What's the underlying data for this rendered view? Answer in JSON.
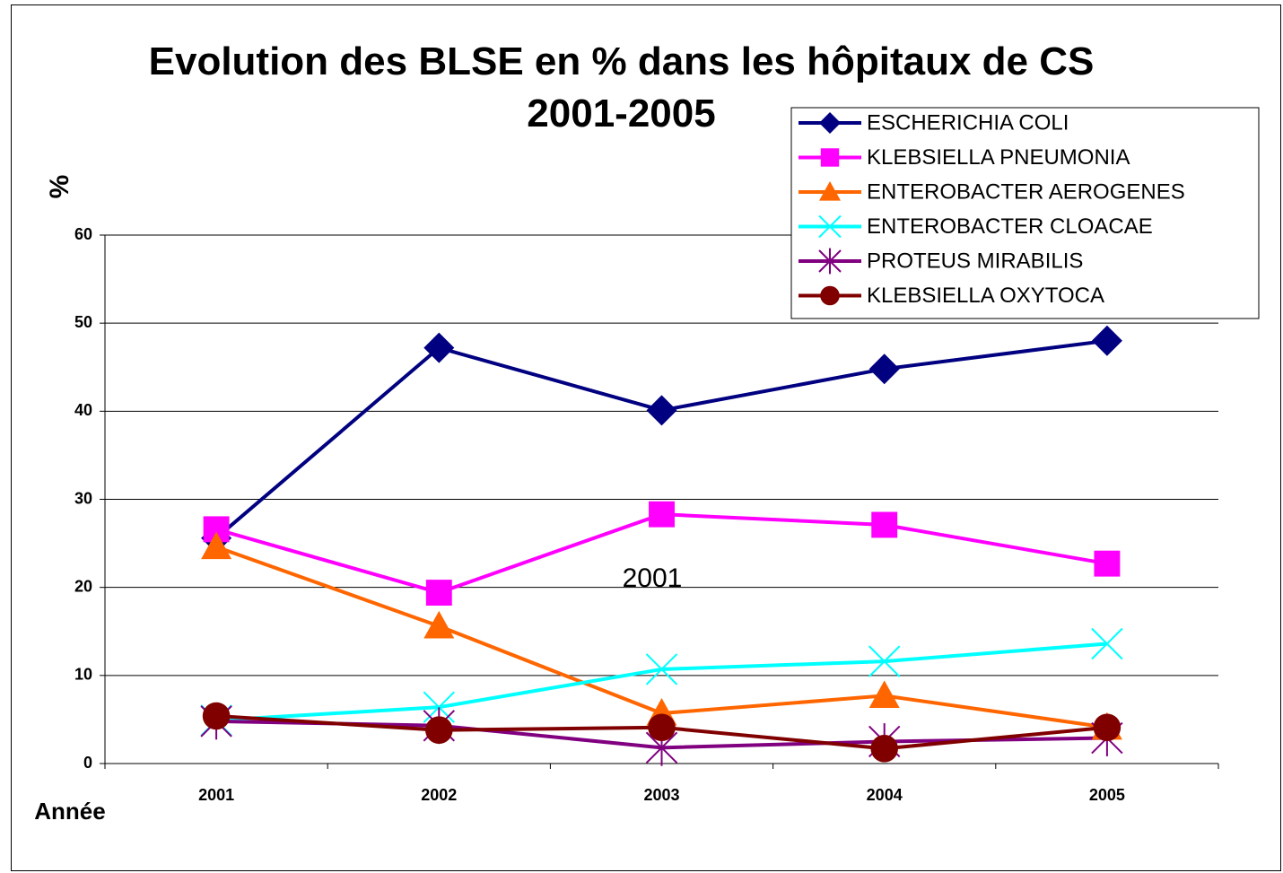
{
  "chart_data": {
    "type": "line",
    "title": "Evolution des BLSE en % dans les hôpitaux de CS 2001-2005",
    "y_label": "%",
    "x_label": "Année",
    "annotation": "2001",
    "categories": [
      "2001",
      "2002",
      "2003",
      "2004",
      "2005"
    ],
    "ylim": [
      0,
      60
    ],
    "yticks": [
      0,
      10,
      20,
      30,
      40,
      50,
      60
    ],
    "grid": true,
    "legend": "top-right",
    "series": [
      {
        "name": "ESCHERICHIA COLI",
        "color": "#000080",
        "marker": "diamond",
        "values": [
          25.6,
          47.2,
          40.1,
          44.8,
          48.0
        ]
      },
      {
        "name": "KLEBSIELLA PNEUMONIA",
        "color": "#ff00ff",
        "marker": "square",
        "values": [
          26.6,
          19.4,
          28.3,
          27.1,
          22.7
        ]
      },
      {
        "name": "ENTEROBACTER AEROGENES",
        "color": "#ff6600",
        "marker": "triangle",
        "values": [
          24.6,
          15.6,
          5.7,
          7.7,
          4.1
        ]
      },
      {
        "name": "ENTEROBACTER CLOACAE",
        "color": "#00ffff",
        "marker": "x",
        "values": [
          4.9,
          6.4,
          10.7,
          11.6,
          13.6
        ]
      },
      {
        "name": "PROTEUS MIRABILIS",
        "color": "#800080",
        "marker": "asterisk",
        "values": [
          4.8,
          4.3,
          1.8,
          2.5,
          2.9
        ]
      },
      {
        "name": "KLEBSIELLA OXYTOCA",
        "color": "#800000",
        "marker": "circle",
        "values": [
          5.4,
          3.8,
          4.1,
          1.7,
          4.1
        ]
      }
    ]
  }
}
